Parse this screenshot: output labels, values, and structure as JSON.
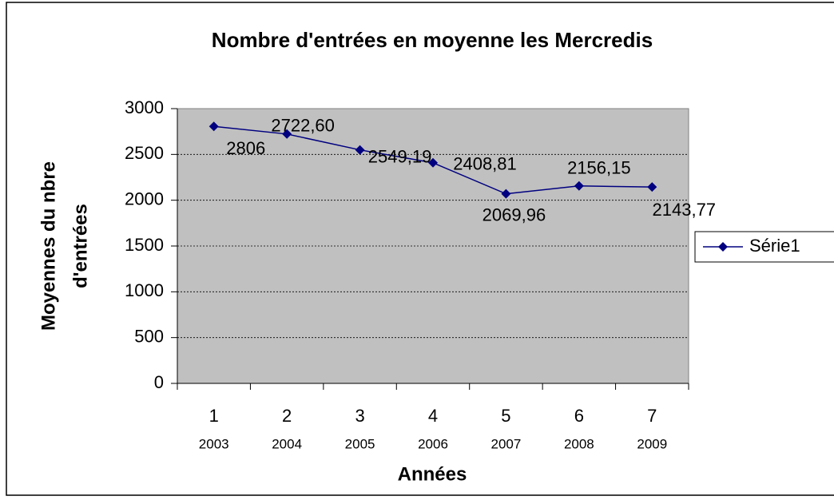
{
  "chart_data": {
    "type": "line",
    "title": "Nombre d'entrées en moyenne les Mercredis",
    "xlabel": "Années",
    "ylabel": [
      "Moyennes du nbre",
      "d'entrées"
    ],
    "categories": [
      "1",
      "2",
      "3",
      "4",
      "5",
      "6",
      "7"
    ],
    "category_years": [
      "2003",
      "2004",
      "2005",
      "2006",
      "2007",
      "2008",
      "2009"
    ],
    "series": [
      {
        "name": "Série1",
        "color": "#000080",
        "values": [
          2806,
          2722.6,
          2549.19,
          2408.81,
          2069.96,
          2156.15,
          2143.77
        ],
        "value_labels": [
          "2806",
          "2722,60",
          "2549,19",
          "2408,81",
          "2069,96",
          "2156,15",
          "2143,77"
        ]
      }
    ],
    "ylim": [
      0,
      3000
    ],
    "yticks": [
      0,
      500,
      1000,
      1500,
      2000,
      2500,
      3000
    ],
    "grid": true,
    "legend": "right"
  }
}
